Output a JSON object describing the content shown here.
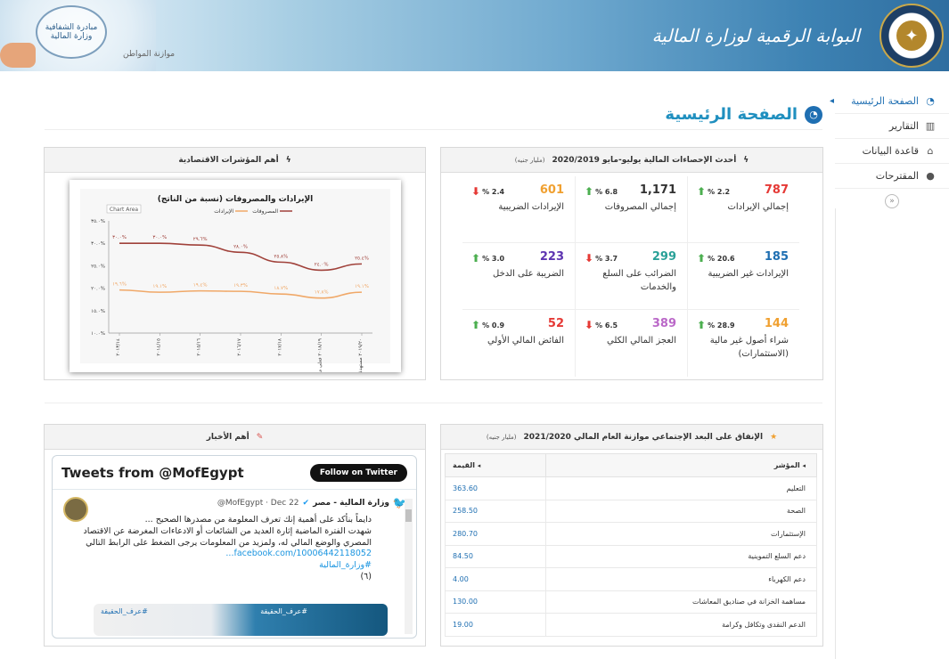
{
  "header": {
    "title": "البوابة الرقمية لوزارة المالية",
    "transparency_logo": "مبادرة الشفافية وزارة المالية",
    "citizen_budget_logo": "موازنة المواطن"
  },
  "sidebar": {
    "items": [
      {
        "label": "الصفحة الرئيسية",
        "icon": "dashboard-icon"
      },
      {
        "label": "التقارير",
        "icon": "bar-chart-icon"
      },
      {
        "label": "قاعدة البيانات",
        "icon": "home-icon"
      },
      {
        "label": "المقترحات",
        "icon": "comments-icon"
      }
    ],
    "collapse_symbol": "«"
  },
  "page_title": "الصفحة الرئيسية",
  "stats_panel": {
    "title": "أحدث الإحصاءات المالية يوليو-مايو 2020/2019",
    "unit": "(مليار جنيه)",
    "cells": [
      {
        "value": "787",
        "change": "2.2 %",
        "dir": "up",
        "label": "إجمالي الإيرادات",
        "color": "#e53935"
      },
      {
        "value": "1,171",
        "change": "6.8 %",
        "dir": "up",
        "label": "إجمالي المصروفات",
        "color": "#333333"
      },
      {
        "value": "601",
        "change": "2.4 %",
        "dir": "down",
        "label": "الإيرادات الضريبية",
        "color": "#f0a030"
      },
      {
        "value": "185",
        "change": "20.6 %",
        "dir": "up",
        "label": "الإيرادات غير الضريبية",
        "color": "#1f6fb2"
      },
      {
        "value": "299",
        "change": "3.7 %",
        "dir": "down",
        "label": "الضرائب على السلع والخدمات",
        "color": "#2aa198"
      },
      {
        "value": "223",
        "change": "3.0 %",
        "dir": "up",
        "label": "الضريبة على الدخل",
        "color": "#5e35b1"
      },
      {
        "value": "144",
        "change": "28.9 %",
        "dir": "up",
        "label": "شراء أصول غير مالية (الاستثمارات)",
        "color": "#f0a030"
      },
      {
        "value": "389",
        "change": "6.5 %",
        "dir": "down",
        "label": "العجز المالي الكلي",
        "color": "#ba68c8"
      },
      {
        "value": "52",
        "change": "0.9 %",
        "dir": "up",
        "label": "الفائض المالي الأولي",
        "color": "#e53935"
      }
    ]
  },
  "indicators_panel": {
    "title": "أهم المؤشرات الاقتصادية"
  },
  "chart_data": {
    "type": "line",
    "title": "الإيرادات والمصروفات (نسبة من الناتج)",
    "chart_area_label": "Chart Area",
    "categories": [
      "٢٠١٣/١٤",
      "٢٠١٤/١٥",
      "٢٠١٥/١٦",
      "٢٠١٦/١٧",
      "٢٠١٧/١٨",
      "٢٠١٨/١٩ فعلي مبدئي",
      "٢٠١٩/٢٠ مستهدف"
    ],
    "series": [
      {
        "name": "المصروفات",
        "color": "#a0413a",
        "values": [
          30.0,
          30.0,
          29.6,
          28.0,
          25.8,
          24.0,
          25.4
        ],
        "labels": [
          "٣٠.٠%",
          "٣٠.٠%",
          "٢٩.٦%",
          "٢٨.٠%",
          "٢٥.٨%",
          "٢٤.٠%",
          "٢٥.٤%"
        ]
      },
      {
        "name": "الإيرادات",
        "color": "#f0a868",
        "values": [
          19.6,
          19.1,
          19.4,
          19.3,
          18.7,
          17.8,
          19.1
        ],
        "labels": [
          "١٩.٦%",
          "١٩.١%",
          "١٩.٤%",
          "١٩.٣%",
          "١٨.٧%",
          "١٧.٨%",
          "١٩.١%"
        ]
      }
    ],
    "yticks": [
      "١٠.٠%",
      "١٥.٠%",
      "٢٠.٠%",
      "٢٥.٠%",
      "٣٠.٠%",
      "٣٥.٠%"
    ],
    "ylim": [
      10,
      35
    ]
  },
  "news_panel": {
    "title": "أهم الأخبار"
  },
  "twitter": {
    "header": "Tweets from @MofEgypt",
    "follow": "Follow on Twitter",
    "name": "وزارة المالية - مصر",
    "handle": "@MofEgypt · Dec 22",
    "text_1": "دايماً بنأكد على أهمية إنك تعرف المعلومة من مصدرها الصحيح ...",
    "text_2": "شهدت الفترة الماضية إثارة العديد من الشائعات أو الادعاءات المغرضة عن الاقتصاد المصري والوضع المالي له، ولمزيد من المعلومات يرجى الضغط على الرابط التالي",
    "link": "facebook.com/10006442118052...",
    "hashtag": "#وزارة_المالية",
    "count": "(٦)",
    "img_tag_1": "#عرف_الحقيقة",
    "img_tag_2": "#عرف_الحقيقة"
  },
  "social_panel": {
    "title": "الإنفاق على البعد الإجتماعي موازنة العام المالي 2021/2020",
    "unit": "(مليار جنيه)",
    "col_indicator": "المؤشر",
    "col_value": "القيمة",
    "rows": [
      {
        "name": "التعليم",
        "value": "363.60"
      },
      {
        "name": "الصحة",
        "value": "258.50"
      },
      {
        "name": "الإستثمارات",
        "value": "280.70"
      },
      {
        "name": "دعم السلع التموينية",
        "value": "84.50"
      },
      {
        "name": "دعم الكهرباء",
        "value": "4.00"
      },
      {
        "name": "مساهمة الخزانة في صناديق المعاشات",
        "value": "130.00"
      },
      {
        "name": "الدعم النقدى وتكافل وكرامة",
        "value": "19.00"
      }
    ]
  }
}
